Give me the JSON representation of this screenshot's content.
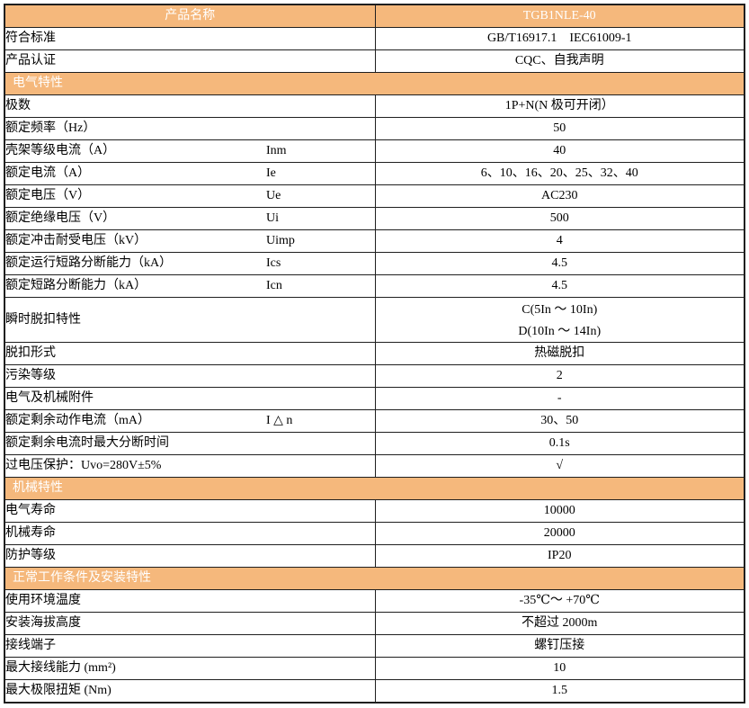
{
  "table": {
    "colors": {
      "header_bg": "#F5B87C",
      "header_text": "#FFFFFF",
      "border": "#1F1F1F",
      "cell_text": "#000000"
    },
    "header": {
      "name_label": "产品名称",
      "model": "TGB1NLE-40"
    },
    "rows": [
      {
        "type": "data",
        "label": "符合标准",
        "value": "GB/T16917.1    IEC61009-1"
      },
      {
        "type": "data",
        "label": "产品认证",
        "value": "CQC、自我声明"
      },
      {
        "type": "section",
        "label": "电气特性"
      },
      {
        "type": "data",
        "label": "极数",
        "value": "1P+N(N 极可开闭）"
      },
      {
        "type": "data",
        "label": "额定频率（Hz）",
        "value": "50"
      },
      {
        "type": "data",
        "label": "壳架等级电流（A）",
        "symbol": "Inm",
        "value": "40"
      },
      {
        "type": "data",
        "label": "额定电流（A）",
        "symbol": "Ie",
        "value": "6、10、16、20、25、32、40"
      },
      {
        "type": "data",
        "label": "额定电压（V）",
        "symbol": "Ue",
        "value": "AC230"
      },
      {
        "type": "data",
        "label": "额定绝缘电压（V）",
        "symbol": "Ui",
        "value": "500"
      },
      {
        "type": "data",
        "label": "额定冲击耐受电压（kV）",
        "symbol": "Uimp",
        "value": "4"
      },
      {
        "type": "data",
        "label": "额定运行短路分断能力（kA）",
        "symbol": "Ics",
        "value": "4.5"
      },
      {
        "type": "data",
        "label": "额定短路分断能力（kA）",
        "symbol": "Icn",
        "value": "4.5"
      },
      {
        "type": "data",
        "label": "瞬时脱扣特性",
        "value_lines": [
          "C(5In ～ 10In)",
          "D(10In ～ 14In)"
        ]
      },
      {
        "type": "data",
        "label": "脱扣形式",
        "value": "热磁脱扣"
      },
      {
        "type": "data",
        "label": "污染等级",
        "value": "2"
      },
      {
        "type": "data",
        "label": "电气及机械附件",
        "value": "-"
      },
      {
        "type": "data",
        "label": "额定剩余动作电流（mA）",
        "symbol": "I △ n",
        "value": "30、50"
      },
      {
        "type": "data",
        "label": "额定剩余电流时最大分断时间",
        "value": "0.1s"
      },
      {
        "type": "data",
        "label": "过电压保护：Uvo=280V±5%",
        "value": "√"
      },
      {
        "type": "section",
        "label": "机械特性"
      },
      {
        "type": "data",
        "label": "电气寿命",
        "value": "10000"
      },
      {
        "type": "data",
        "label": "机械寿命",
        "value": "20000"
      },
      {
        "type": "data",
        "label": "防护等级",
        "value": "IP20"
      },
      {
        "type": "section",
        "label": "正常工作条件及安装特性"
      },
      {
        "type": "data",
        "label": "使用环境温度",
        "value": "-35℃～ +70℃"
      },
      {
        "type": "data",
        "label": "安装海拔高度",
        "value": "不超过 2000m"
      },
      {
        "type": "data",
        "label": "接线端子",
        "value": "螺钉压接"
      },
      {
        "type": "data",
        "label": "最大接线能力 (mm²)",
        "value": "10"
      },
      {
        "type": "data",
        "label": "最大极限扭矩 (Nm)",
        "value": "1.5"
      }
    ]
  }
}
